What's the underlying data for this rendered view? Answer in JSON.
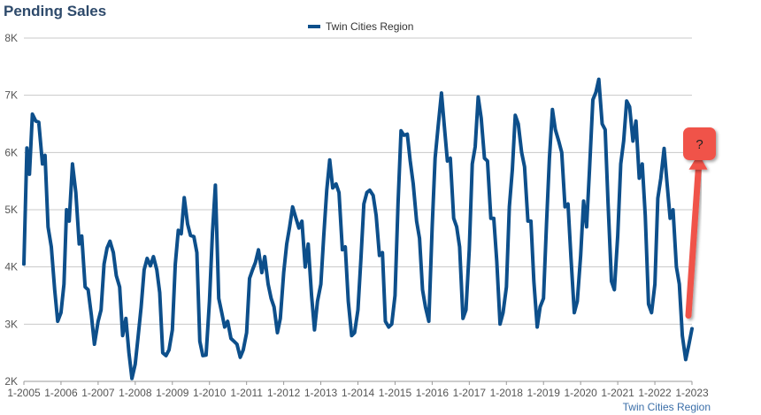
{
  "chart_data": {
    "type": "line",
    "title": "Pending Sales",
    "source": "Twin Cities Region",
    "ylim": [
      2000,
      8000
    ],
    "yticks": [
      2000,
      3000,
      4000,
      5000,
      6000,
      7000,
      8000
    ],
    "ytick_labels": [
      "2K",
      "3K",
      "4K",
      "5K",
      "6K",
      "7K",
      "8K"
    ],
    "xticks": [
      2005,
      2006,
      2007,
      2008,
      2009,
      2010,
      2011,
      2012,
      2013,
      2014,
      2015,
      2016,
      2017,
      2018,
      2019,
      2020,
      2021,
      2022,
      2023
    ],
    "xtick_labels": [
      "1-2005",
      "1-2006",
      "1-2007",
      "1-2008",
      "1-2009",
      "1-2010",
      "1-2011",
      "1-2012",
      "1-2013",
      "1-2014",
      "1-2015",
      "1-2016",
      "1-2017",
      "1-2018",
      "1-2019",
      "1-2020",
      "1-2021",
      "1-2022",
      "1-2023"
    ],
    "grid": "horizontal",
    "legend": "top-center",
    "series": [
      {
        "name": "Twin Cities Region",
        "color": "#0d4f8b",
        "points": [
          [
            2005.0,
            4050
          ],
          [
            2005.08,
            6080
          ],
          [
            2005.15,
            5620
          ],
          [
            2005.23,
            6670
          ],
          [
            2005.32,
            6550
          ],
          [
            2005.4,
            6530
          ],
          [
            2005.5,
            5800
          ],
          [
            2005.57,
            5950
          ],
          [
            2005.65,
            4700
          ],
          [
            2005.74,
            4350
          ],
          [
            2005.83,
            3600
          ],
          [
            2005.91,
            3050
          ],
          [
            2006.0,
            3200
          ],
          [
            2006.08,
            3700
          ],
          [
            2006.15,
            5000
          ],
          [
            2006.22,
            4800
          ],
          [
            2006.31,
            5800
          ],
          [
            2006.4,
            5300
          ],
          [
            2006.49,
            4400
          ],
          [
            2006.56,
            4540
          ],
          [
            2006.65,
            3650
          ],
          [
            2006.73,
            3600
          ],
          [
            2006.82,
            3150
          ],
          [
            2006.9,
            2650
          ],
          [
            2007.0,
            3050
          ],
          [
            2007.08,
            3250
          ],
          [
            2007.16,
            4050
          ],
          [
            2007.24,
            4330
          ],
          [
            2007.32,
            4450
          ],
          [
            2007.41,
            4250
          ],
          [
            2007.49,
            3850
          ],
          [
            2007.58,
            3650
          ],
          [
            2007.66,
            2800
          ],
          [
            2007.75,
            3100
          ],
          [
            2007.83,
            2500
          ],
          [
            2007.91,
            2050
          ],
          [
            2008.0,
            2300
          ],
          [
            2008.08,
            2800
          ],
          [
            2008.16,
            3300
          ],
          [
            2008.24,
            3950
          ],
          [
            2008.32,
            4150
          ],
          [
            2008.41,
            4020
          ],
          [
            2008.49,
            4180
          ],
          [
            2008.58,
            3950
          ],
          [
            2008.66,
            3550
          ],
          [
            2008.74,
            2500
          ],
          [
            2008.83,
            2450
          ],
          [
            2008.91,
            2550
          ],
          [
            2009.0,
            2900
          ],
          [
            2009.08,
            4050
          ],
          [
            2009.16,
            4640
          ],
          [
            2009.24,
            4580
          ],
          [
            2009.32,
            5210
          ],
          [
            2009.41,
            4750
          ],
          [
            2009.49,
            4550
          ],
          [
            2009.58,
            4530
          ],
          [
            2009.66,
            4250
          ],
          [
            2009.74,
            2700
          ],
          [
            2009.82,
            2450
          ],
          [
            2009.91,
            2460
          ],
          [
            2010.0,
            3400
          ],
          [
            2010.08,
            4600
          ],
          [
            2010.16,
            5430
          ],
          [
            2010.25,
            3450
          ],
          [
            2010.33,
            3200
          ],
          [
            2010.41,
            2950
          ],
          [
            2010.49,
            3050
          ],
          [
            2010.58,
            2750
          ],
          [
            2010.66,
            2700
          ],
          [
            2010.74,
            2650
          ],
          [
            2010.83,
            2420
          ],
          [
            2010.91,
            2550
          ],
          [
            2011.0,
            2850
          ],
          [
            2011.08,
            3800
          ],
          [
            2011.16,
            3950
          ],
          [
            2011.24,
            4080
          ],
          [
            2011.32,
            4300
          ],
          [
            2011.41,
            3900
          ],
          [
            2011.49,
            4180
          ],
          [
            2011.58,
            3700
          ],
          [
            2011.66,
            3450
          ],
          [
            2011.74,
            3300
          ],
          [
            2011.83,
            2850
          ],
          [
            2011.91,
            3100
          ],
          [
            2012.0,
            3900
          ],
          [
            2012.08,
            4400
          ],
          [
            2012.16,
            4700
          ],
          [
            2012.24,
            5050
          ],
          [
            2012.33,
            4850
          ],
          [
            2012.41,
            4680
          ],
          [
            2012.49,
            4800
          ],
          [
            2012.58,
            4000
          ],
          [
            2012.66,
            4400
          ],
          [
            2012.75,
            3500
          ],
          [
            2012.83,
            2900
          ],
          [
            2012.91,
            3400
          ],
          [
            2013.0,
            3700
          ],
          [
            2013.08,
            4550
          ],
          [
            2013.16,
            5350
          ],
          [
            2013.24,
            5870
          ],
          [
            2013.32,
            5380
          ],
          [
            2013.41,
            5450
          ],
          [
            2013.49,
            5300
          ],
          [
            2013.58,
            4300
          ],
          [
            2013.66,
            4350
          ],
          [
            2013.74,
            3400
          ],
          [
            2013.83,
            2800
          ],
          [
            2013.91,
            2850
          ],
          [
            2014.0,
            3250
          ],
          [
            2014.08,
            4150
          ],
          [
            2014.16,
            5100
          ],
          [
            2014.24,
            5300
          ],
          [
            2014.32,
            5340
          ],
          [
            2014.41,
            5250
          ],
          [
            2014.49,
            4900
          ],
          [
            2014.58,
            4200
          ],
          [
            2014.66,
            4250
          ],
          [
            2014.74,
            3050
          ],
          [
            2014.83,
            2950
          ],
          [
            2014.91,
            3000
          ],
          [
            2015.0,
            3500
          ],
          [
            2015.08,
            5100
          ],
          [
            2015.16,
            6380
          ],
          [
            2015.24,
            6300
          ],
          [
            2015.33,
            6320
          ],
          [
            2015.41,
            5850
          ],
          [
            2015.49,
            5450
          ],
          [
            2015.58,
            4800
          ],
          [
            2015.66,
            4500
          ],
          [
            2015.74,
            3600
          ],
          [
            2015.82,
            3300
          ],
          [
            2015.91,
            3050
          ],
          [
            2016.0,
            4700
          ],
          [
            2016.08,
            5900
          ],
          [
            2016.16,
            6450
          ],
          [
            2016.25,
            7040
          ],
          [
            2016.33,
            6450
          ],
          [
            2016.41,
            5850
          ],
          [
            2016.49,
            5900
          ],
          [
            2016.58,
            4850
          ],
          [
            2016.66,
            4700
          ],
          [
            2016.74,
            4350
          ],
          [
            2016.83,
            3100
          ],
          [
            2016.91,
            3250
          ],
          [
            2017.0,
            4300
          ],
          [
            2017.08,
            5800
          ],
          [
            2017.16,
            6100
          ],
          [
            2017.24,
            6970
          ],
          [
            2017.32,
            6600
          ],
          [
            2017.41,
            5900
          ],
          [
            2017.49,
            5850
          ],
          [
            2017.58,
            4850
          ],
          [
            2017.66,
            4850
          ],
          [
            2017.74,
            4100
          ],
          [
            2017.83,
            3000
          ],
          [
            2017.91,
            3200
          ],
          [
            2018.0,
            3650
          ],
          [
            2018.08,
            5050
          ],
          [
            2018.16,
            5700
          ],
          [
            2018.24,
            6650
          ],
          [
            2018.32,
            6500
          ],
          [
            2018.41,
            6000
          ],
          [
            2018.49,
            5750
          ],
          [
            2018.58,
            4800
          ],
          [
            2018.66,
            4800
          ],
          [
            2018.74,
            3750
          ],
          [
            2018.83,
            2950
          ],
          [
            2018.91,
            3300
          ],
          [
            2019.0,
            3450
          ],
          [
            2019.08,
            4750
          ],
          [
            2019.16,
            5900
          ],
          [
            2019.24,
            6750
          ],
          [
            2019.32,
            6400
          ],
          [
            2019.41,
            6200
          ],
          [
            2019.49,
            6000
          ],
          [
            2019.58,
            5050
          ],
          [
            2019.66,
            5100
          ],
          [
            2019.74,
            4150
          ],
          [
            2019.83,
            3200
          ],
          [
            2019.91,
            3400
          ],
          [
            2020.0,
            4200
          ],
          [
            2020.08,
            5150
          ],
          [
            2020.16,
            4700
          ],
          [
            2020.24,
            5700
          ],
          [
            2020.33,
            6920
          ],
          [
            2020.41,
            7050
          ],
          [
            2020.49,
            7280
          ],
          [
            2020.58,
            6500
          ],
          [
            2020.66,
            6400
          ],
          [
            2020.74,
            5100
          ],
          [
            2020.83,
            3750
          ],
          [
            2020.91,
            3600
          ],
          [
            2021.0,
            4550
          ],
          [
            2021.08,
            5800
          ],
          [
            2021.16,
            6200
          ],
          [
            2021.24,
            6900
          ],
          [
            2021.32,
            6800
          ],
          [
            2021.41,
            6200
          ],
          [
            2021.49,
            6550
          ],
          [
            2021.58,
            5550
          ],
          [
            2021.66,
            5800
          ],
          [
            2021.74,
            4900
          ],
          [
            2021.83,
            3350
          ],
          [
            2021.91,
            3200
          ],
          [
            2022.0,
            3700
          ],
          [
            2022.08,
            5200
          ],
          [
            2022.16,
            5550
          ],
          [
            2022.25,
            6070
          ],
          [
            2022.33,
            5450
          ],
          [
            2022.41,
            4850
          ],
          [
            2022.49,
            5000
          ],
          [
            2022.58,
            4000
          ],
          [
            2022.66,
            3700
          ],
          [
            2022.74,
            2800
          ],
          [
            2022.83,
            2380
          ],
          [
            2022.91,
            2620
          ],
          [
            2023.0,
            2920
          ]
        ]
      }
    ],
    "annotation": {
      "text": "?",
      "color": "#f0524a",
      "arrow_from": [
        2023.0,
        3150
      ],
      "arrow_to": [
        2023.25,
        5950
      ]
    }
  }
}
